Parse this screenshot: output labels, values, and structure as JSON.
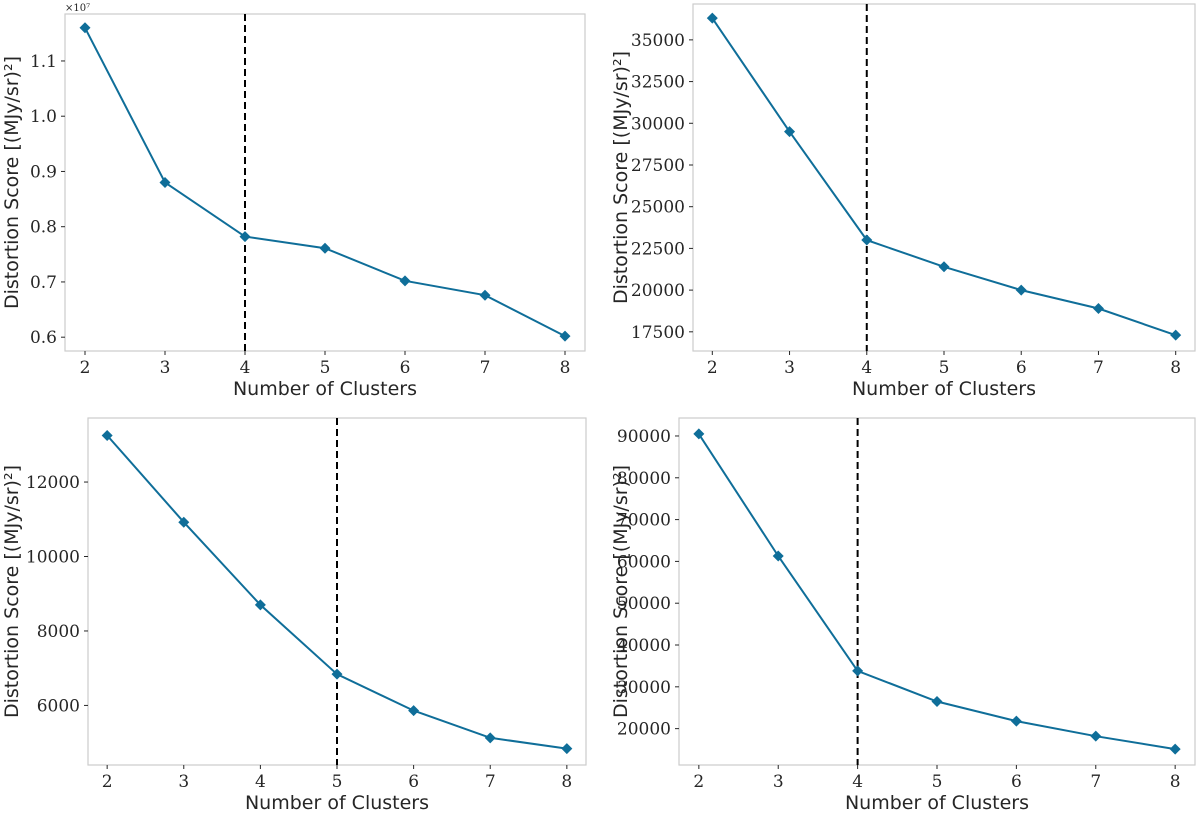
{
  "colors": {
    "series": "#0f6e99",
    "elbow": "#000000",
    "frame": "#cccccc",
    "text": "#262626"
  },
  "chart_data": [
    {
      "type": "line",
      "x": [
        2,
        3,
        4,
        5,
        6,
        7,
        8
      ],
      "values": [
        11600000,
        8800000,
        7820000,
        7610000,
        7020000,
        6760000,
        6020000
      ],
      "xlabel": "Number of Clusters",
      "ylabel": "Distortion Score [(MJy/sr)²]",
      "xlim": [
        1.75,
        8.25
      ],
      "ylim": [
        5750000,
        11850000
      ],
      "xticks": [
        2,
        3,
        4,
        5,
        6,
        7,
        8
      ],
      "yticks": [
        6000000,
        7000000,
        8000000,
        9000000,
        10000000,
        11000000
      ],
      "ytick_labels": [
        "0.6",
        "0.7",
        "0.8",
        "0.9",
        "1.0",
        "1.1"
      ],
      "y_offset_label": "×10⁷",
      "marker": "diamond",
      "elbow_x": 4,
      "grid": false
    },
    {
      "type": "line",
      "x": [
        2,
        3,
        4,
        5,
        6,
        7,
        8
      ],
      "values": [
        36300,
        29500,
        23000,
        21400,
        20000,
        18900,
        17300
      ],
      "xlabel": "Number of Clusters",
      "ylabel": "Distortion Score [(MJy/sr)²]",
      "xlim": [
        1.75,
        8.25
      ],
      "ylim": [
        16350,
        37150
      ],
      "xticks": [
        2,
        3,
        4,
        5,
        6,
        7,
        8
      ],
      "yticks": [
        17500,
        20000,
        22500,
        25000,
        27500,
        30000,
        32500,
        35000
      ],
      "ytick_labels": [
        "17500",
        "20000",
        "22500",
        "25000",
        "27500",
        "30000",
        "32500",
        "35000"
      ],
      "marker": "diamond",
      "elbow_x": 4,
      "grid": false
    },
    {
      "type": "line",
      "x": [
        2,
        3,
        4,
        5,
        6,
        7,
        8
      ],
      "values": [
        13250,
        10920,
        8700,
        6840,
        5860,
        5130,
        4840
      ],
      "xlabel": "Number of Clusters",
      "ylabel": "Distortion Score [(MJy/sr)²]",
      "xlim": [
        1.75,
        8.25
      ],
      "ylim": [
        4400,
        13720
      ],
      "xticks": [
        2,
        3,
        4,
        5,
        6,
        7,
        8
      ],
      "yticks": [
        6000,
        8000,
        10000,
        12000
      ],
      "ytick_labels": [
        "6000",
        "8000",
        "10000",
        "12000"
      ],
      "marker": "diamond",
      "elbow_x": 5,
      "grid": false
    },
    {
      "type": "line",
      "x": [
        2,
        3,
        4,
        5,
        6,
        7,
        8
      ],
      "values": [
        90500,
        61300,
        33800,
        26500,
        21800,
        18200,
        15100
      ],
      "xlabel": "Number of Clusters",
      "ylabel": "Distortion Score [(MJy/sr)²]",
      "xlim": [
        1.75,
        8.25
      ],
      "ylim": [
        11300,
        94300
      ],
      "xticks": [
        2,
        3,
        4,
        5,
        6,
        7,
        8
      ],
      "yticks": [
        20000,
        30000,
        40000,
        50000,
        60000,
        70000,
        80000,
        90000
      ],
      "ytick_labels": [
        "20000",
        "30000",
        "40000",
        "50000",
        "60000",
        "70000",
        "80000",
        "90000"
      ],
      "marker": "diamond",
      "elbow_x": 4,
      "grid": false
    }
  ]
}
